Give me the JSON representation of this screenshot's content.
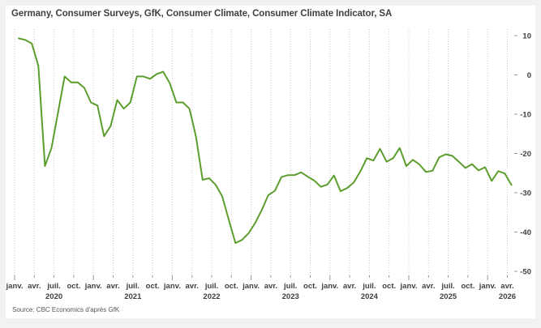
{
  "title": "Germany, Consumer Surveys, GfK, Consumer Climate, Consumer Climate Indicator, SA",
  "source": "Source: CBC Economics d'après GfK",
  "colors": {
    "line": "#5c9e2e",
    "grid": "#c8c8c8",
    "text": "#404040",
    "background": "#f2f2f2"
  },
  "chart_data": {
    "type": "line",
    "title": "Germany, Consumer Surveys, GfK, Consumer Climate, Consumer Climate Indicator, SA",
    "xlabel": "",
    "ylabel": "",
    "ylim": [
      -50,
      10
    ],
    "yticks": [
      10,
      0,
      -10,
      -20,
      -30,
      -40,
      -50
    ],
    "y_axis_side": "right",
    "grid": "vertical dotted at quarter ticks",
    "legend": "none",
    "x_start": "2020-01",
    "x_end": "2026-04",
    "frequency": "monthly",
    "x_tick_labels": [
      {
        "month": "janv.",
        "year": ""
      },
      {
        "month": "avr.",
        "year": ""
      },
      {
        "month": "juil.",
        "year": "2020"
      },
      {
        "month": "oct.",
        "year": ""
      },
      {
        "month": "janv.",
        "year": ""
      },
      {
        "month": "avr.",
        "year": ""
      },
      {
        "month": "juil.",
        "year": "2021"
      },
      {
        "month": "oct.",
        "year": ""
      },
      {
        "month": "janv.",
        "year": ""
      },
      {
        "month": "avr.",
        "year": ""
      },
      {
        "month": "juil.",
        "year": "2022"
      },
      {
        "month": "oct.",
        "year": ""
      },
      {
        "month": "janv.",
        "year": ""
      },
      {
        "month": "avr.",
        "year": ""
      },
      {
        "month": "juil.",
        "year": "2023"
      },
      {
        "month": "oct.",
        "year": ""
      },
      {
        "month": "janv.",
        "year": ""
      },
      {
        "month": "avr.",
        "year": ""
      },
      {
        "month": "juil.",
        "year": "2024"
      },
      {
        "month": "oct.",
        "year": ""
      },
      {
        "month": "janv.",
        "year": ""
      },
      {
        "month": "avr.",
        "year": ""
      },
      {
        "month": "juil.",
        "year": "2025"
      },
      {
        "month": "oct.",
        "year": ""
      },
      {
        "month": "janv.",
        "year": ""
      },
      {
        "month": "avr.",
        "year": "2026"
      }
    ],
    "series": [
      {
        "name": "Consumer Climate Indicator, SA",
        "values": [
          9.3,
          8.9,
          8.0,
          2.3,
          -23.2,
          -18.6,
          -9.5,
          -0.4,
          -1.9,
          -1.9,
          -3.3,
          -7.0,
          -7.8,
          -15.6,
          -13.0,
          -6.4,
          -8.6,
          -7.0,
          -0.4,
          -0.4,
          -1.0,
          0.2,
          0.8,
          -2.1,
          -7.0,
          -7.0,
          -8.6,
          -15.8,
          -26.7,
          -26.3,
          -28.0,
          -31.0,
          -37.0,
          -42.8,
          -42.0,
          -40.3,
          -37.7,
          -34.4,
          -30.6,
          -29.5,
          -26.0,
          -25.5,
          -25.5,
          -24.8,
          -25.9,
          -26.9,
          -28.5,
          -27.9,
          -25.6,
          -29.6,
          -28.8,
          -27.4,
          -24.6,
          -21.2,
          -21.8,
          -18.8,
          -22.1,
          -21.2,
          -18.6,
          -23.2,
          -21.6,
          -22.8,
          -24.7,
          -24.4,
          -21.0,
          -20.2,
          -20.6,
          -22.1,
          -23.7,
          -22.7,
          -24.3,
          -23.5,
          -27.0,
          -24.5,
          -25.1,
          -28.0
        ]
      }
    ]
  }
}
